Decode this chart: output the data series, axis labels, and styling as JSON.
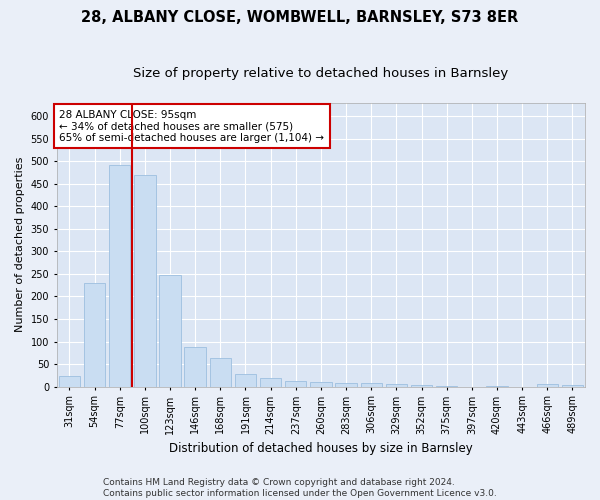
{
  "title_line1": "28, ALBANY CLOSE, WOMBWELL, BARNSLEY, S73 8ER",
  "title_line2": "Size of property relative to detached houses in Barnsley",
  "xlabel": "Distribution of detached houses by size in Barnsley",
  "ylabel": "Number of detached properties",
  "bar_labels": [
    "31sqm",
    "54sqm",
    "77sqm",
    "100sqm",
    "123sqm",
    "146sqm",
    "168sqm",
    "191sqm",
    "214sqm",
    "237sqm",
    "260sqm",
    "283sqm",
    "306sqm",
    "329sqm",
    "352sqm",
    "375sqm",
    "397sqm",
    "420sqm",
    "443sqm",
    "466sqm",
    "489sqm"
  ],
  "bar_values": [
    23,
    230,
    492,
    470,
    248,
    87,
    63,
    29,
    20,
    12,
    11,
    8,
    9,
    5,
    3,
    2,
    0,
    1,
    0,
    5,
    3
  ],
  "bar_color": "#c9ddf2",
  "bar_edge_color": "#9dbfe0",
  "vline_color": "#cc0000",
  "vline_x": 2.5,
  "annotation_text": "28 ALBANY CLOSE: 95sqm\n← 34% of detached houses are smaller (575)\n65% of semi-detached houses are larger (1,104) →",
  "annotation_box_color": "#ffffff",
  "annotation_box_edge_color": "#cc0000",
  "ylim": [
    0,
    630
  ],
  "yticks": [
    0,
    50,
    100,
    150,
    200,
    250,
    300,
    350,
    400,
    450,
    500,
    550,
    600
  ],
  "background_color": "#eaeff8",
  "plot_background": "#dce6f4",
  "footer_line1": "Contains HM Land Registry data © Crown copyright and database right 2024.",
  "footer_line2": "Contains public sector information licensed under the Open Government Licence v3.0.",
  "title1_fontsize": 10.5,
  "title2_fontsize": 9.5,
  "xlabel_fontsize": 8.5,
  "ylabel_fontsize": 8,
  "tick_fontsize": 7,
  "annotation_fontsize": 7.5,
  "footer_fontsize": 6.5
}
